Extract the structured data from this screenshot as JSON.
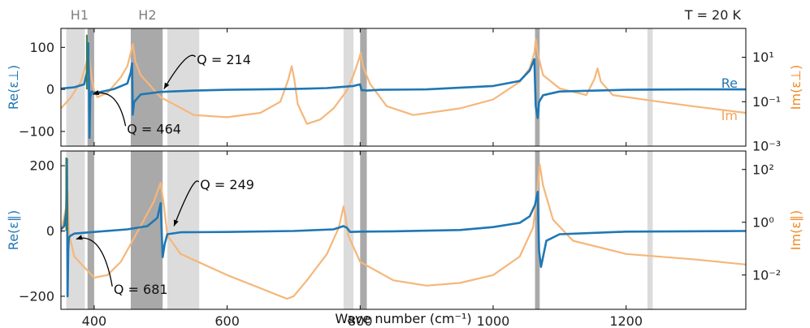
{
  "chart_data": {
    "type": "line",
    "x_axis": {
      "label": "Wave number (cm⁻¹)",
      "range": [
        350,
        1380
      ],
      "ticks": [
        400,
        600,
        800,
        1000,
        1200
      ],
      "tick_labels": [
        "400",
        "600",
        "800",
        "1000",
        "1200"
      ]
    },
    "temperature_label": "T = 20 K",
    "top_labels": [
      {
        "text": "H1",
        "x": 378
      },
      {
        "text": "H2",
        "x": 480
      }
    ],
    "colors": {
      "re": "#1f77b4",
      "im": "#f5b77a",
      "dark_band": "#a9a9a9",
      "light_band": "#dcdcdc",
      "peak": "#3a7a5a"
    },
    "bands_dark": [
      [
        390,
        400
      ],
      [
        455,
        503
      ],
      [
        800,
        810
      ],
      [
        1063,
        1070
      ]
    ],
    "bands_light": [
      [
        358,
        386
      ],
      [
        510,
        558
      ],
      [
        775,
        790
      ],
      [
        1232,
        1240
      ]
    ],
    "panels": [
      {
        "id": "perp",
        "ylabel_left": "Re(ε⊥)",
        "ylabel_right": "Im(ε⊥)",
        "ylim_left": [
          -135,
          145
        ],
        "yticks_left": [
          -100,
          0,
          100
        ],
        "ytick_labels_left": [
          "−100",
          "0",
          "100"
        ],
        "ylim_right_log": [
          -3,
          2.3
        ],
        "yticks_right": [
          -3,
          -1,
          1
        ],
        "ytick_labels_right": [
          "10⁻³",
          "10⁻¹",
          "10¹"
        ],
        "series_labels": {
          "re": "Re",
          "im": "Im"
        },
        "re_series": {
          "name": "Re",
          "x": [
            350,
            370,
            385,
            389,
            391,
            392,
            393,
            394,
            396,
            400,
            410,
            430,
            450,
            455,
            457,
            458,
            460,
            470,
            500,
            550,
            600,
            650,
            700,
            750,
            790,
            800,
            802,
            805,
            810,
            830,
            900,
            1000,
            1040,
            1055,
            1062,
            1064,
            1067,
            1069,
            1075,
            1100,
            1200,
            1300,
            1380
          ],
          "y": [
            2,
            5,
            12,
            40,
            110,
            40,
            -115,
            -20,
            -5,
            -8,
            -6,
            1,
            14,
            40,
            62,
            -60,
            -30,
            -12,
            -6,
            -3,
            -1,
            0,
            1,
            3,
            8,
            12,
            -2,
            -2,
            -3,
            -1,
            0,
            8,
            20,
            45,
            72,
            -40,
            -68,
            -30,
            -14,
            -5,
            -1,
            0,
            0
          ]
        },
        "im_series": {
          "name": "Im",
          "x": [
            350,
            365,
            380,
            388,
            392,
            396,
            400,
            405,
            420,
            440,
            450,
            455,
            458,
            462,
            470,
            500,
            550,
            600,
            650,
            680,
            692,
            697,
            701,
            706,
            720,
            740,
            760,
            780,
            790,
            798,
            801,
            804,
            815,
            840,
            880,
            950,
            1000,
            1040,
            1055,
            1062,
            1064,
            1067,
            1075,
            1100,
            1140,
            1152,
            1157,
            1162,
            1180,
            1250,
            1300,
            1380
          ],
          "y": [
            -1.3,
            -0.8,
            -0.1,
            0.7,
            1.2,
            0.1,
            -0.5,
            -0.8,
            -0.6,
            0.1,
            0.6,
            1.2,
            1.6,
            0.8,
            0.2,
            -0.8,
            -1.6,
            -1.7,
            -1.5,
            -1.0,
            0.0,
            0.6,
            0.0,
            -1.1,
            -2.0,
            -1.8,
            -1.3,
            -0.5,
            0.2,
            0.9,
            1.2,
            0.6,
            -0.2,
            -1.2,
            -1.6,
            -1.3,
            -0.9,
            -0.1,
            0.5,
            1.2,
            1.8,
            1.2,
            0.2,
            -0.4,
            -0.7,
            0.0,
            0.5,
            -0.1,
            -0.7,
            -1.0,
            -1.2,
            -1.5
          ]
        },
        "annotations": [
          {
            "text": "Q = 214",
            "x": 595,
            "y": 70,
            "arrow_to_x": 505,
            "arrow_to_y": 1
          },
          {
            "text": "Q = 464",
            "x": 490,
            "y": -95,
            "arrow_to_x": 398,
            "arrow_to_y": -12
          }
        ],
        "peak_marker": {
          "x": 389,
          "from": 0,
          "to": 130
        }
      },
      {
        "id": "par",
        "ylabel_left": "Re(ε∥)",
        "ylabel_right": "Im(ε∥)",
        "ylim_left": [
          -240,
          245
        ],
        "yticks_left": [
          -200,
          0,
          200
        ],
        "ytick_labels_left": [
          "−200",
          "0",
          "200"
        ],
        "ylim_right_log": [
          -3.3,
          2.7
        ],
        "yticks_right": [
          -2,
          0,
          2
        ],
        "ytick_labels_right": [
          "10⁻²",
          "10⁰",
          "10²"
        ],
        "re_series": {
          "name": "Re",
          "x": [
            350,
            355,
            358,
            359,
            360,
            361,
            362,
            364,
            370,
            400,
            450,
            480,
            495,
            500,
            502,
            503,
            506,
            510,
            530,
            600,
            700,
            760,
            775,
            780,
            785,
            800,
            850,
            950,
            1000,
            1040,
            1055,
            1063,
            1067,
            1069,
            1072,
            1080,
            1100,
            1200,
            1380
          ],
          "y": [
            5,
            15,
            60,
            220,
            -200,
            -60,
            -20,
            -15,
            -8,
            -3,
            5,
            15,
            40,
            85,
            -30,
            -80,
            -40,
            -10,
            -4,
            -3,
            0,
            5,
            15,
            10,
            -3,
            -2,
            -1,
            3,
            12,
            25,
            45,
            80,
            120,
            -60,
            -110,
            -30,
            -10,
            -2,
            0
          ]
        },
        "im_series": {
          "name": "Im",
          "x": [
            350,
            358,
            360,
            362,
            370,
            400,
            420,
            440,
            460,
            490,
            500,
            505,
            510,
            530,
            600,
            650,
            680,
            690,
            700,
            720,
            750,
            768,
            775,
            778,
            782,
            800,
            850,
            900,
            950,
            1000,
            1040,
            1060,
            1066,
            1070,
            1075,
            1090,
            1120,
            1200,
            1300,
            1380
          ],
          "y": [
            -0.4,
            0.6,
            1.2,
            -0.4,
            -1.3,
            -2.1,
            -2.0,
            -1.5,
            -0.6,
            0.8,
            1.5,
            0.6,
            -0.5,
            -1.2,
            -2.0,
            -2.5,
            -2.8,
            -2.9,
            -2.8,
            -2.2,
            -1.2,
            -0.2,
            0.6,
            0.2,
            -0.5,
            -1.5,
            -2.2,
            -2.4,
            -2.3,
            -2.0,
            -1.3,
            -0.2,
            1.0,
            2.2,
            1.4,
            0.1,
            -0.7,
            -1.2,
            -1.4,
            -1.6
          ]
        },
        "annotations": [
          {
            "text": "Q = 249",
            "x": 600,
            "y": 140,
            "arrow_to_x": 520,
            "arrow_to_y": 15
          },
          {
            "text": "Q = 681",
            "x": 470,
            "y": -180,
            "arrow_to_x": 373,
            "arrow_to_y": -25
          }
        ],
        "peak_marker": {
          "x": 358,
          "from": 0,
          "to": 225
        }
      }
    ]
  }
}
